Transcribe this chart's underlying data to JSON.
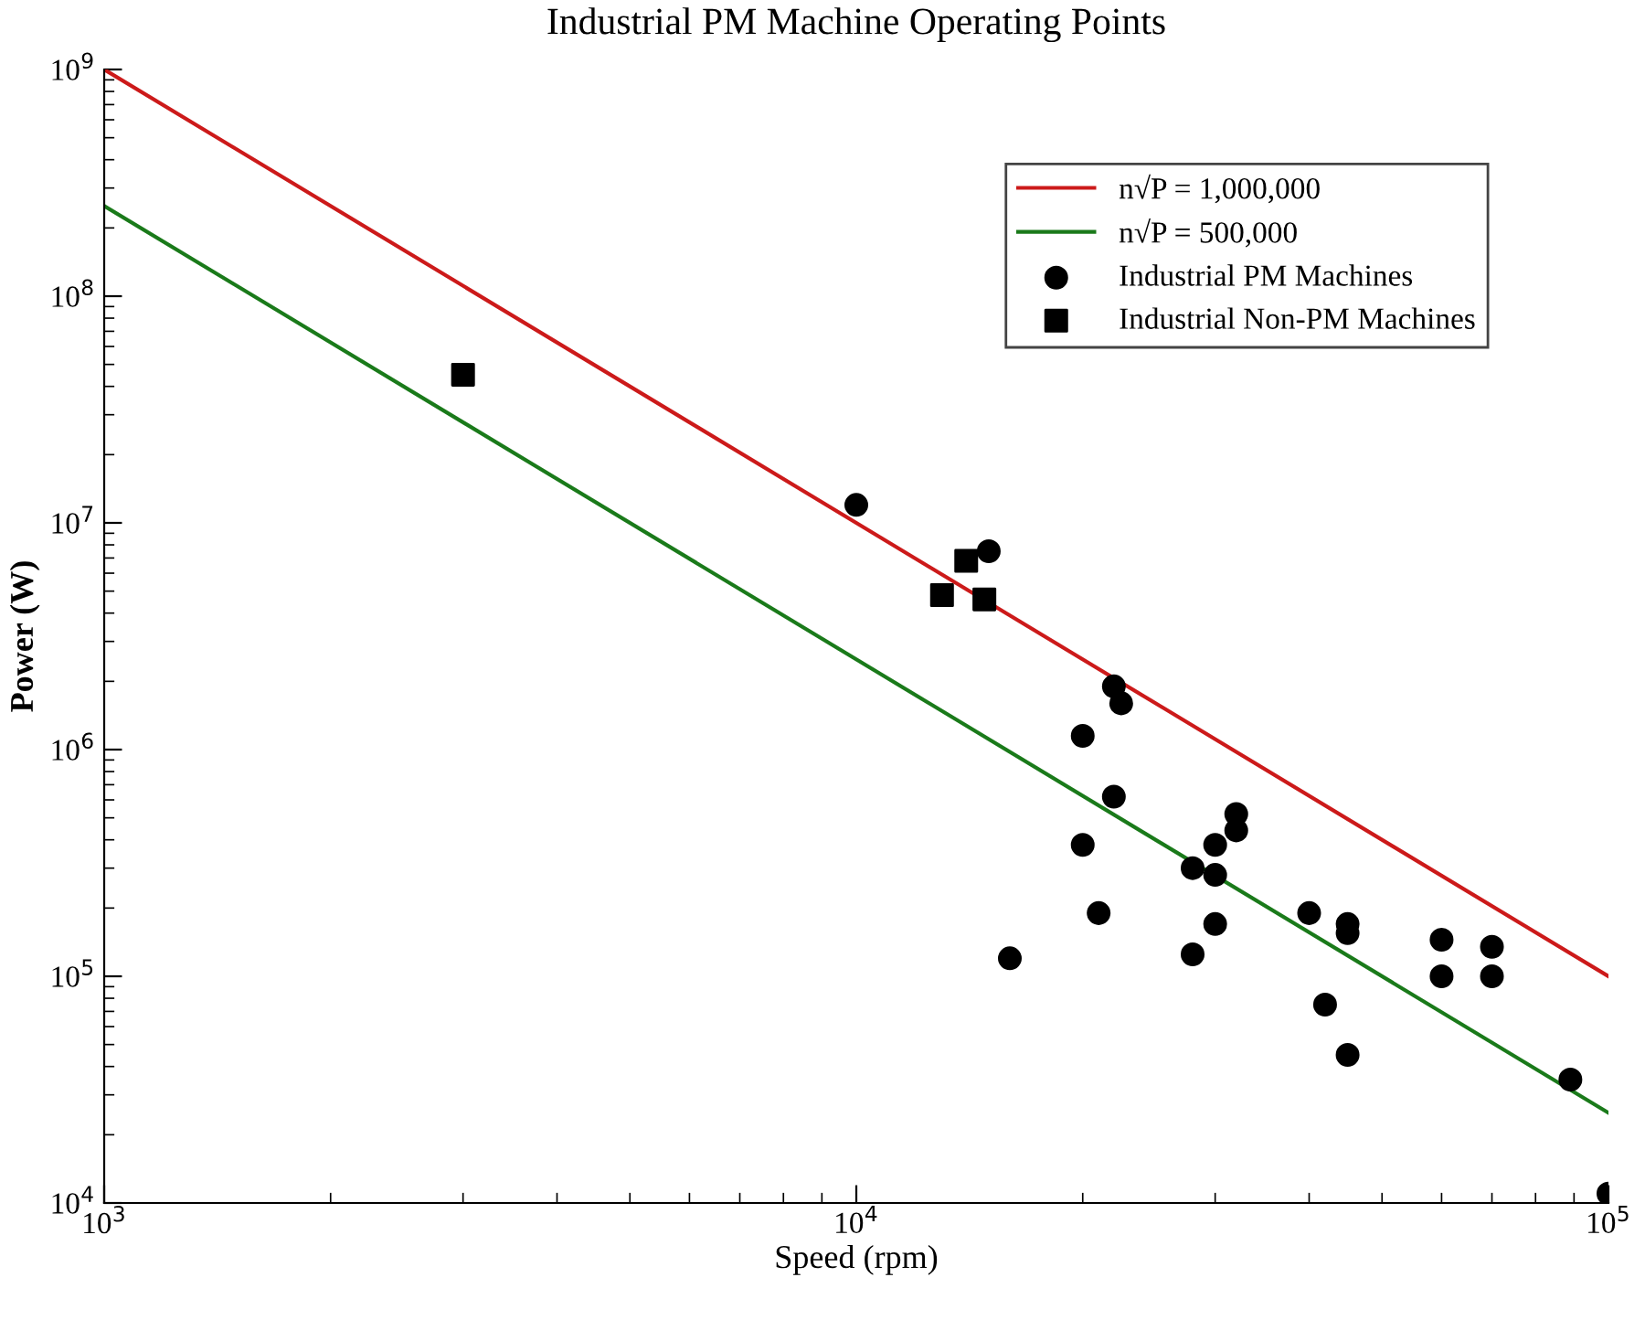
{
  "chart_data": {
    "type": "scatter",
    "title": "Industrial PM Machine Operating Points",
    "xlabel": "Speed (rpm)",
    "ylabel": "Power (W)",
    "log": "xy",
    "grid": false,
    "legend": "top right",
    "xlim": [
      1000,
      100000
    ],
    "ylim": [
      10000,
      1000000000
    ],
    "xticks": [
      {
        "value": 1000,
        "label": "10$^{3}$"
      },
      {
        "value": 10000,
        "label": "10$^{4}$"
      },
      {
        "value": 100000,
        "label": "10$^{5}$"
      }
    ],
    "yticks": [
      {
        "value": 10000,
        "label": "10$^{4}$"
      },
      {
        "value": 100000,
        "label": "10$^{5}$"
      },
      {
        "value": 1000000,
        "label": "10$^{6}$"
      },
      {
        "value": 10000000,
        "label": "10$^{7}$"
      },
      {
        "value": 100000000,
        "label": "10$^{8}$"
      },
      {
        "value": 1000000000,
        "label": "10$^{9}$"
      }
    ],
    "series": [
      {
        "name": "n√P = 1,000,000",
        "type": "line",
        "color": "#cc1a1a",
        "marker": "none",
        "x": [
          1000,
          100000
        ],
        "values": [
          1000000000,
          100000
        ]
      },
      {
        "name": "n√P = 500,000",
        "type": "line",
        "color": "#1a7a1a",
        "marker": "none",
        "x": [
          1000,
          100000
        ],
        "values": [
          250000000,
          25000
        ]
      },
      {
        "name": "Industrial PM Machines",
        "color": "#000000",
        "marker": "circle",
        "x": [
          10000,
          15000,
          22000,
          22500,
          20000,
          22000,
          32000,
          32000,
          20000,
          30000,
          28000,
          30000,
          40000,
          45000,
          45000,
          60000,
          70000,
          60000,
          70000,
          21000,
          30000,
          28000,
          16000,
          42000,
          45000,
          89000,
          100000
        ],
        "values": [
          12000000,
          7500000,
          1900000,
          1600000,
          1150000,
          620000,
          520000,
          440000,
          380000,
          380000,
          300000,
          280000,
          190000,
          170000,
          155000,
          145000,
          135000,
          100000,
          100000,
          190000,
          170000,
          125000,
          120000,
          75000,
          45000,
          35000,
          11000
        ]
      },
      {
        "name": "Industrial Non-PM Machines",
        "color": "#000000",
        "marker": "square",
        "x": [
          3000,
          14000,
          13000,
          14800
        ],
        "values": [
          45000000,
          6800000,
          4800000,
          4600000
        ]
      }
    ]
  }
}
